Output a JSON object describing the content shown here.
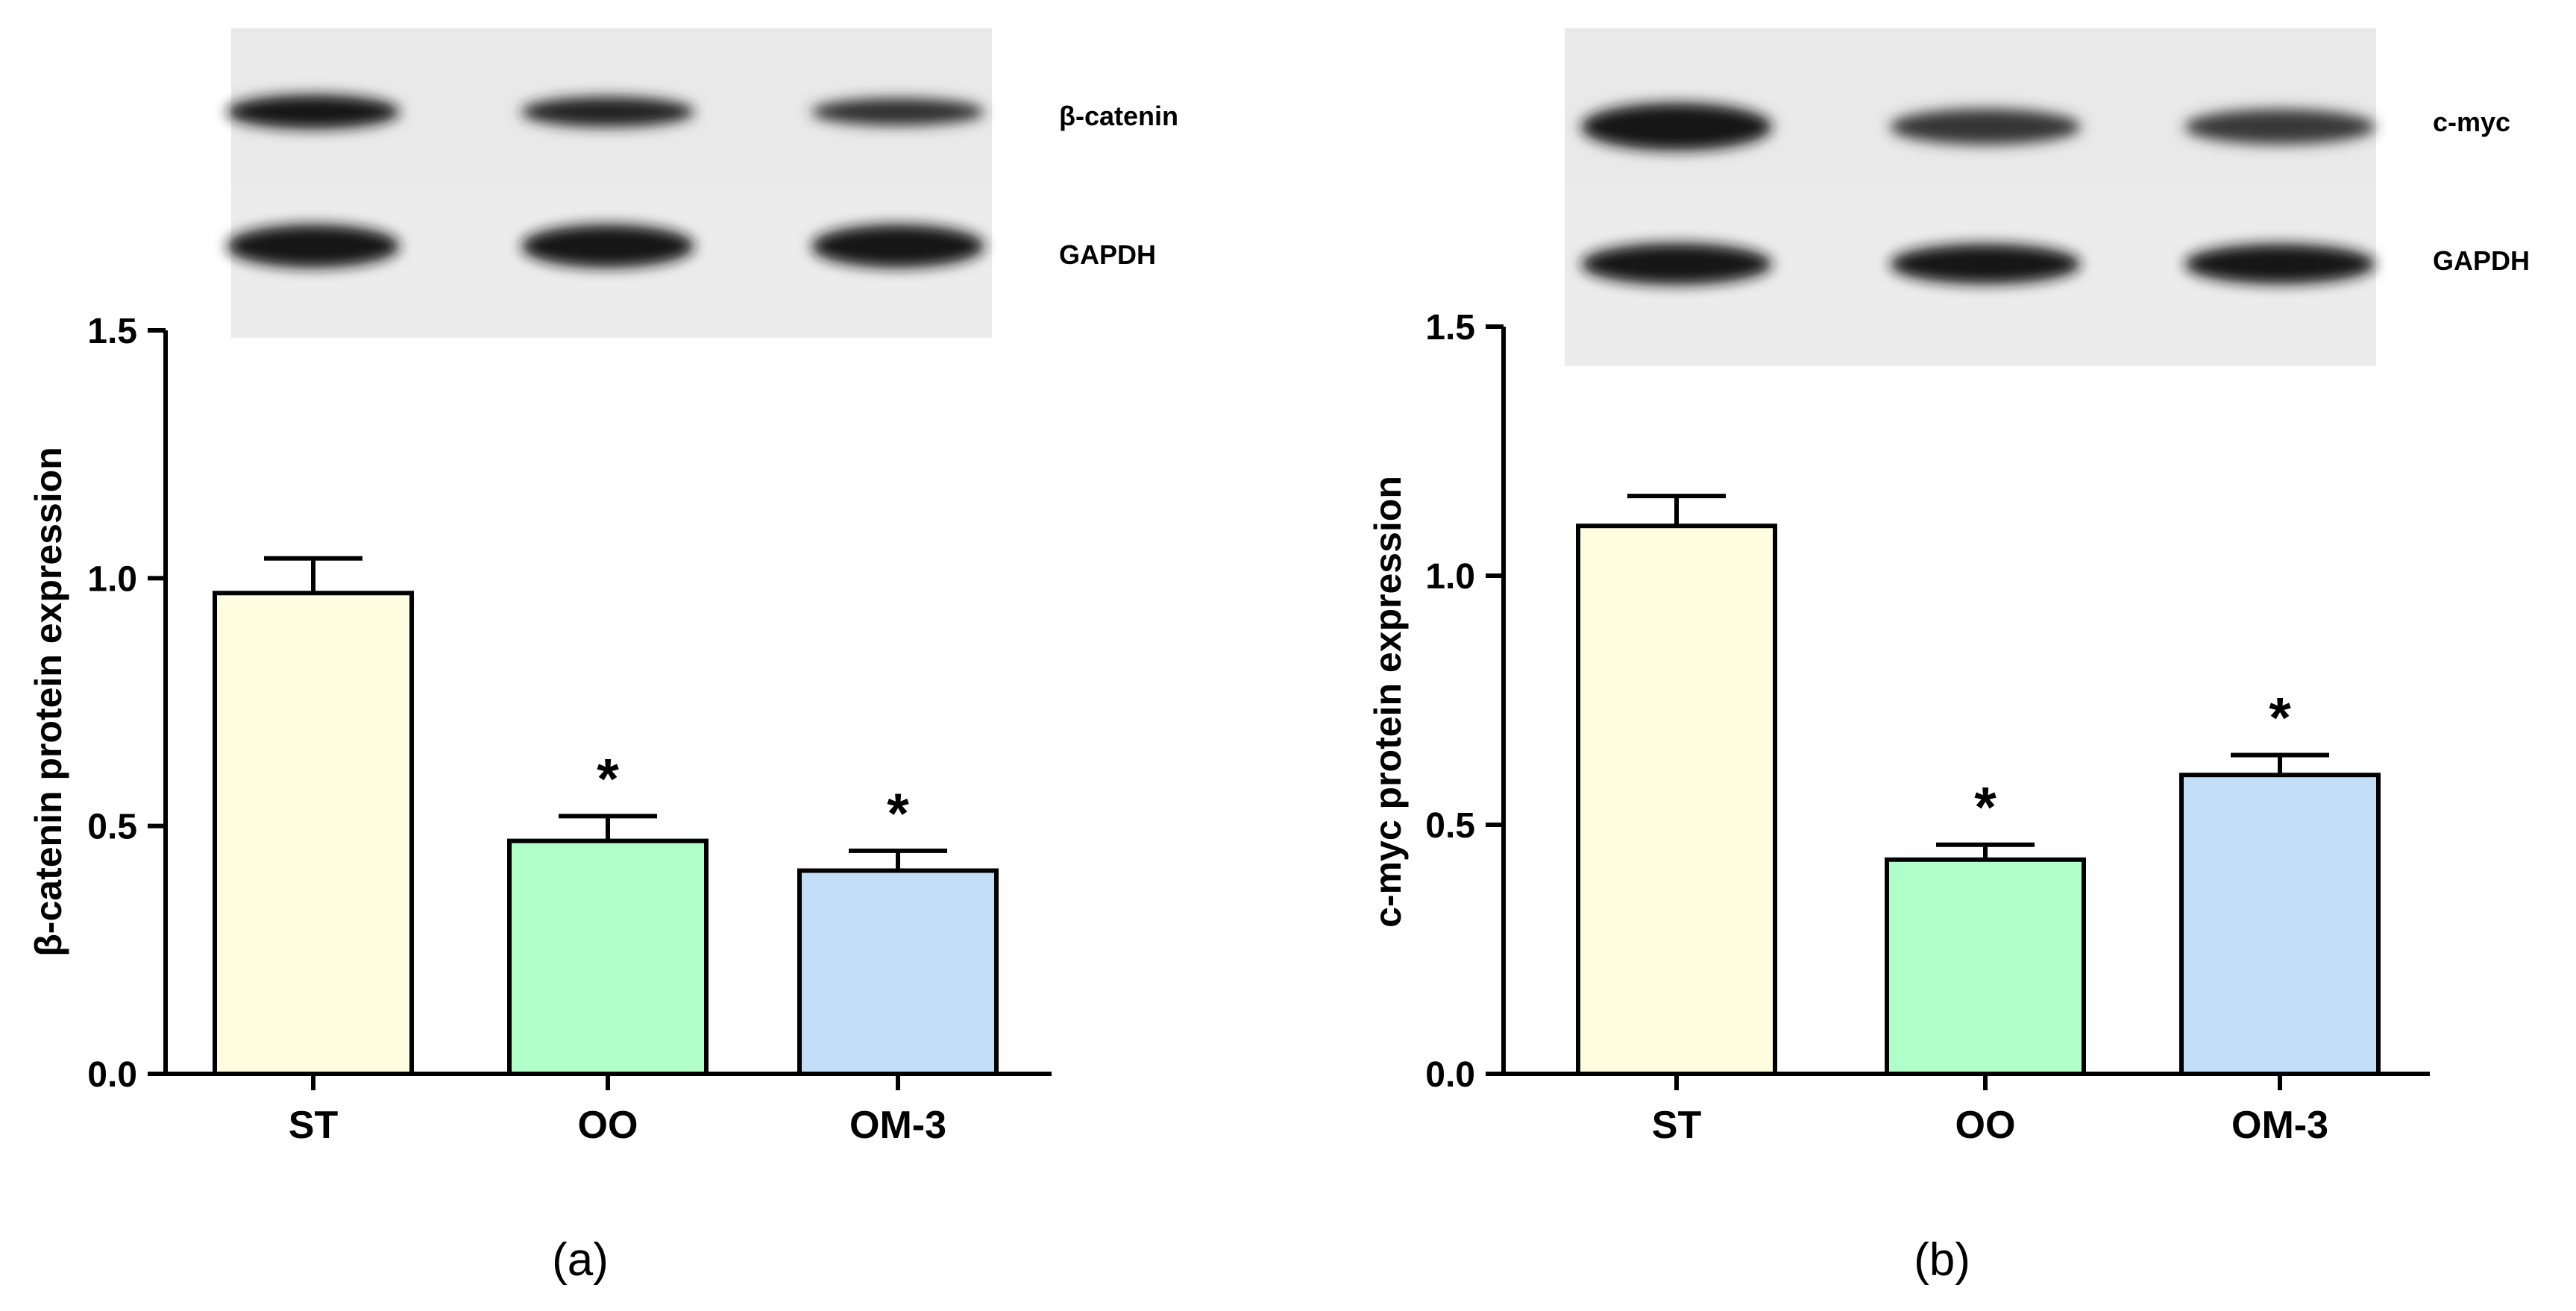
{
  "colors": {
    "st": "#FFFDE0",
    "oo": "#B0FFC8",
    "om3": "#C2DEF8",
    "axis": "#000000"
  },
  "chart_data": [
    {
      "type": "bar",
      "panel_label": "(a)",
      "ylabel": "β-catenin protein expression",
      "categories": [
        "ST",
        "OO",
        "OM-3"
      ],
      "values": [
        0.97,
        0.47,
        0.41
      ],
      "errors": [
        0.07,
        0.05,
        0.04
      ],
      "significance": [
        "",
        "*",
        "*"
      ],
      "ylim": [
        0,
        1.5
      ],
      "yticks": [
        "0.0",
        "0.5",
        "1.0",
        "1.5"
      ],
      "blot_labels": [
        "β-catenin",
        "GAPDH"
      ],
      "blot_intensity": [
        [
          1.0,
          0.75,
          0.55
        ],
        [
          1.0,
          1.0,
          1.0
        ]
      ],
      "grid": false
    },
    {
      "type": "bar",
      "panel_label": "(b)",
      "ylabel": "c-myc protein expression",
      "categories": [
        "ST",
        "OO",
        "OM-3"
      ],
      "values": [
        1.1,
        0.43,
        0.6
      ],
      "errors": [
        0.06,
        0.03,
        0.04
      ],
      "significance": [
        "",
        "*",
        "*"
      ],
      "ylim": [
        0,
        1.5
      ],
      "yticks": [
        "0.0",
        "0.5",
        "1.0",
        "1.5"
      ],
      "blot_labels": [
        "c-myc",
        "GAPDH"
      ],
      "blot_intensity": [
        [
          1.0,
          0.45,
          0.42
        ],
        [
          1.0,
          0.92,
          0.92
        ]
      ],
      "grid": false
    }
  ]
}
